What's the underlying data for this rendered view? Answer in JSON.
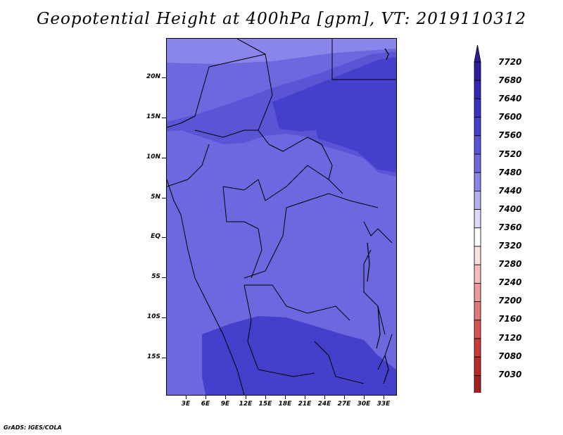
{
  "title": "Geopotential Height at 400hPa [gpm], VT: 2019110312",
  "credit": "GrADS: IGES/COLA",
  "map": {
    "y_ticks": [
      "20N",
      "15N",
      "10N",
      "5N",
      "EQ",
      "5S",
      "10S",
      "15S"
    ],
    "x_ticks": [
      "3E",
      "6E",
      "9E",
      "12E",
      "15E",
      "18E",
      "21E",
      "24E",
      "27E",
      "30E",
      "33E"
    ]
  },
  "colorbar": {
    "labels": [
      "7720",
      "7680",
      "7640",
      "7600",
      "7560",
      "7520",
      "7480",
      "7440",
      "7400",
      "7360",
      "7320",
      "7280",
      "7240",
      "7200",
      "7160",
      "7120",
      "7080",
      "7030"
    ],
    "colors": [
      "#2b1d9c",
      "#3326b0",
      "#3a31c2",
      "#4440cc",
      "#5b55d6",
      "#6e68e0",
      "#8a85ea",
      "#b3b0f2",
      "#dcdaf8",
      "#ffffff",
      "#fde0e0",
      "#f7bcbc",
      "#ee9a9a",
      "#e27878",
      "#d65656",
      "#c93b3b",
      "#b92a2a",
      "#a41f1f"
    ]
  }
}
